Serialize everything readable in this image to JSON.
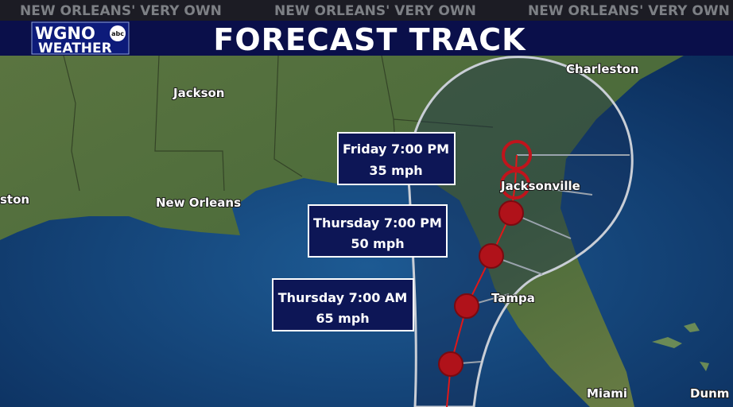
{
  "top_strip": {
    "tagline": [
      "NEW ORLEANS' VERY OWN",
      "NEW ORLEANS' VERY OWN",
      "NEW ORLEANS' VERY OWN"
    ]
  },
  "header": {
    "logo": {
      "station": "WGNO",
      "network": "abc",
      "subtitle": "WEATHER"
    },
    "title": "FORECAST TRACK"
  },
  "map": {
    "cities": [
      "Charleston",
      "Jackson",
      "New Orleans",
      "ston",
      "Jacksonville",
      "Tampa",
      "Miami",
      "Dunm"
    ],
    "forecast_points": [
      {
        "time": "Friday 7:00 PM",
        "wind": "35 mph"
      },
      {
        "time": "Thursday 7:00 PM",
        "wind": "50 mph"
      },
      {
        "time": "Thursday 7:00 AM",
        "wind": "65 mph"
      }
    ]
  }
}
